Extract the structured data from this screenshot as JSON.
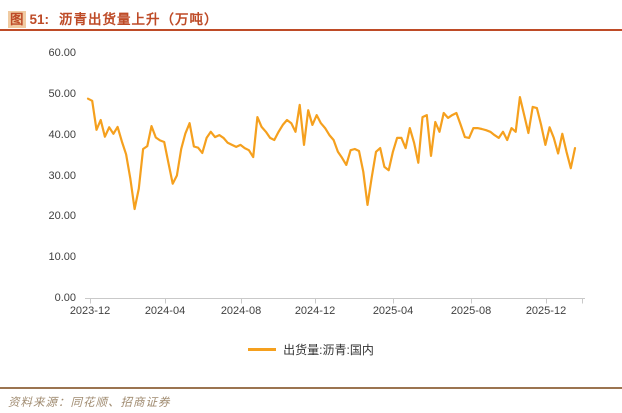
{
  "header": {
    "badge": "图",
    "number": "51:",
    "title": "沥青出货量上升（万吨）"
  },
  "legend": {
    "label": "出货量:沥青:国内"
  },
  "footer": {
    "source": "资料来源：同花顺、招商证券"
  },
  "colors": {
    "accent_red": "#BE4B27",
    "badge_bg": "#F0CBA2",
    "series_orange": "#F5A01E",
    "axis_text": "#404040",
    "axis_line": "#C9C9C9",
    "footer_rule": "#9B7450",
    "source_text": "#A08B70"
  },
  "chart_data": {
    "type": "line",
    "title": "沥青出货量上升（万吨）",
    "unit": "万吨",
    "x_ticks": [
      "2023-12",
      "2024-04",
      "2024-08",
      "2024-12",
      "2025-04",
      "2025-08",
      "2025-12"
    ],
    "y_ticks": [
      "60.00",
      "50.00",
      "40.00",
      "30.00",
      "20.00",
      "10.00",
      "0.00"
    ],
    "ylim": [
      0,
      60
    ],
    "grid": false,
    "legend_position": "bottom-center",
    "frequency": "weekly (values estimated from plot, 2023-12 through 2026-01)",
    "series": [
      {
        "name": "出货量:沥青:国内",
        "color": "#F5A01E",
        "values": [
          48.8,
          48.3,
          41.2,
          43.6,
          39.5,
          41.8,
          40.2,
          41.9,
          38.3,
          35.2,
          29.3,
          21.8,
          26.8,
          36.5,
          37.2,
          42.1,
          39.3,
          38.6,
          38.2,
          33.0,
          28.0,
          30.0,
          36.5,
          40.3,
          42.8,
          37.1,
          36.8,
          35.5,
          39.2,
          40.7,
          39.4,
          39.9,
          39.2,
          38.0,
          37.5,
          37.0,
          37.5,
          36.7,
          36.2,
          34.5,
          44.3,
          41.9,
          40.7,
          39.2,
          38.7,
          40.7,
          42.4,
          43.6,
          42.8,
          40.7,
          47.3,
          37.5,
          46.0,
          42.4,
          44.8,
          42.8,
          41.6,
          39.9,
          38.7,
          35.8,
          34.3,
          32.6,
          36.2,
          36.5,
          36.0,
          30.9,
          22.8,
          29.5,
          35.8,
          36.7,
          32.1,
          31.3,
          35.8,
          39.2,
          39.2,
          36.7,
          41.6,
          38.0,
          33.1,
          44.3,
          44.8,
          34.8,
          43.1,
          40.7,
          45.3,
          44.1,
          44.8,
          45.3,
          42.4,
          39.4,
          39.2,
          41.6,
          41.6,
          41.4,
          41.1,
          40.7,
          39.9,
          39.2,
          40.7,
          38.7,
          41.6,
          40.7,
          49.2,
          44.8,
          40.4,
          46.8,
          46.5,
          42.4,
          37.5,
          41.8,
          39.2,
          35.4,
          40.2,
          35.8,
          31.8,
          36.7
        ]
      }
    ]
  }
}
